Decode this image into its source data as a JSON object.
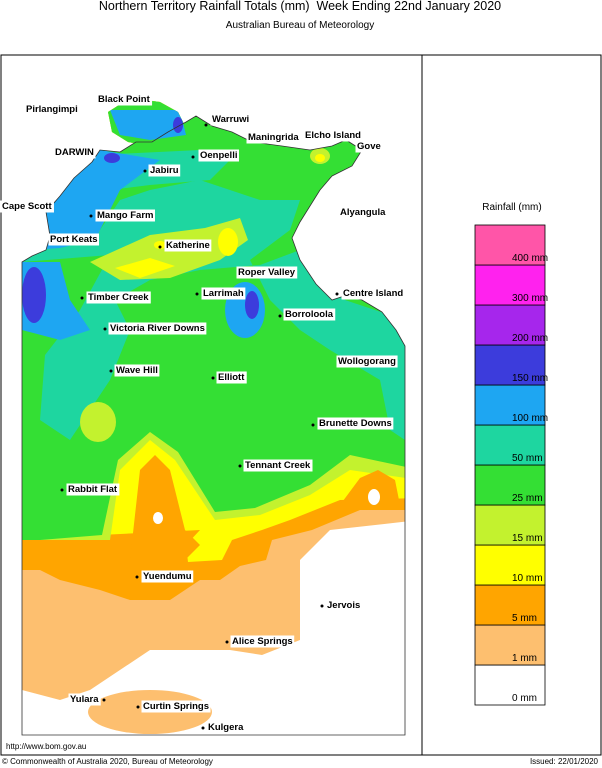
{
  "header": {
    "title": "Northern Territory Rainfall Totals (mm)  Week Ending 22nd January 2020",
    "subtitle": "Australian Bureau of Meteorology"
  },
  "places": [
    "Pirlangimpi",
    "Black Point",
    "DARWIN",
    "Warruwi",
    "Maningrida",
    "Elcho Island",
    "Gove",
    "Oenpelli",
    "Jabiru",
    "Cape Scott",
    "Mango Farm",
    "Alyangula",
    "Port Keats",
    "Katherine",
    "Roper Valley",
    "Centre Island",
    "Timber Creek",
    "Larrimah",
    "Borroloola",
    "Victoria River Downs",
    "Wollogorang",
    "Wave Hill",
    "Elliott",
    "Brunette Downs",
    "Tennant Creek",
    "Rabbit Flat",
    "Yuendumu",
    "Jervois",
    "Alice Springs",
    "Yulara",
    "Curtin Springs",
    "Kulgera"
  ],
  "legend": {
    "title": "Rainfall (mm)",
    "labels": [
      "0 mm",
      "1 mm",
      "5 mm",
      "10 mm",
      "15 mm",
      "25 mm",
      "50 mm",
      "100 mm",
      "150 mm",
      "200 mm",
      "300 mm",
      "400 mm"
    ],
    "colors": [
      "#ffffff",
      "#fdbf6f",
      "#ffa500",
      "#ffff00",
      "#c3f22e",
      "#34df34",
      "#1ed6a0",
      "#1ea6f2",
      "#3c3cdc",
      "#a626ec",
      "#ff22ee",
      "#ff55a8"
    ]
  },
  "footer": {
    "url": "http://www.bom.gov.au",
    "copyright": "© Commonwealth of Australia 2020, Bureau of Meteorology",
    "issued": "Issued: 22/01/2020"
  }
}
